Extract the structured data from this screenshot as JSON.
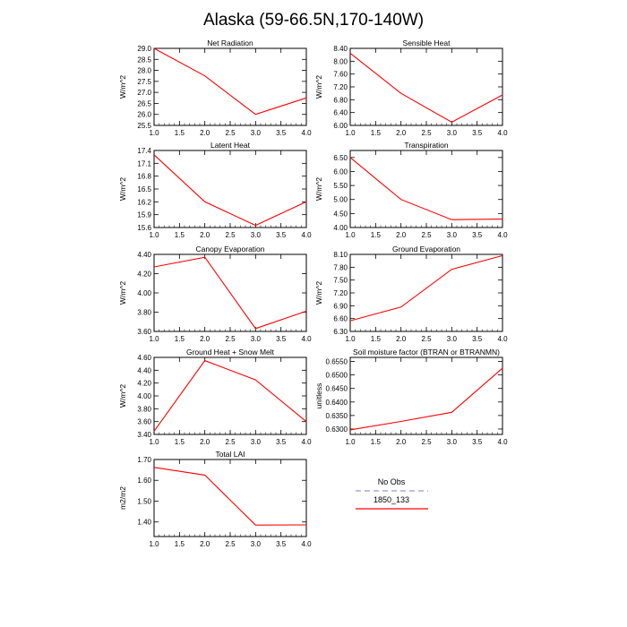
{
  "title": "Alaska (59-66.5N,170-140W)",
  "legend": {
    "title": "No Obs",
    "items": [
      {
        "label": "",
        "color": "#9999dd",
        "style": "dashed"
      },
      {
        "label": "1850_133",
        "color": "#ff0000",
        "style": "solid"
      }
    ]
  },
  "chart_data": [
    {
      "type": "line",
      "title": "Net Radiation",
      "ylabel": "W/m^2",
      "x": [
        1,
        2,
        3,
        4
      ],
      "values": [
        29.0,
        27.75,
        26.0,
        26.75
      ],
      "xlim": [
        1,
        4
      ],
      "ylim": [
        25.5,
        29.0
      ],
      "xticks": [
        "1.0",
        "1.5",
        "2.0",
        "2.5",
        "3.0",
        "3.5",
        "4.0"
      ],
      "yticks": [
        "25.5",
        "26.0",
        "26.5",
        "27.0",
        "27.5",
        "28.0",
        "28.5",
        "29.0"
      ]
    },
    {
      "type": "line",
      "title": "Sensible Heat",
      "ylabel": "W/m^2",
      "x": [
        1,
        2,
        3,
        4
      ],
      "values": [
        8.25,
        7.0,
        6.1,
        6.95
      ],
      "xlim": [
        1,
        4
      ],
      "ylim": [
        6.0,
        8.4
      ],
      "xticks": [
        "1.0",
        "1.5",
        "2.0",
        "2.5",
        "3.0",
        "3.5",
        "4.0"
      ],
      "yticks": [
        "6.00",
        "6.40",
        "6.80",
        "7.20",
        "7.60",
        "8.00",
        "8.40"
      ]
    },
    {
      "type": "line",
      "title": "Latent Heat",
      "ylabel": "W/m^2",
      "x": [
        1,
        2,
        3,
        4
      ],
      "values": [
        17.3,
        16.2,
        15.65,
        16.2
      ],
      "xlim": [
        1,
        4
      ],
      "ylim": [
        15.6,
        17.4
      ],
      "xticks": [
        "1.0",
        "1.5",
        "2.0",
        "2.5",
        "3.0",
        "3.5",
        "4.0"
      ],
      "yticks": [
        "15.6",
        "15.9",
        "16.2",
        "16.5",
        "16.8",
        "17.1",
        "17.4"
      ]
    },
    {
      "type": "line",
      "title": "Transpiration",
      "ylabel": "W/m^2",
      "x": [
        1,
        2,
        3,
        4
      ],
      "values": [
        6.5,
        5.0,
        4.28,
        4.3
      ],
      "xlim": [
        1,
        4
      ],
      "ylim": [
        4.0,
        6.75
      ],
      "xticks": [
        "1.0",
        "1.5",
        "2.0",
        "2.5",
        "3.0",
        "3.5",
        "4.0"
      ],
      "yticks": [
        "4.00",
        "4.50",
        "5.00",
        "5.50",
        "6.00",
        "6.50"
      ]
    },
    {
      "type": "line",
      "title": "Canopy Evaporation",
      "ylabel": "W/m^2",
      "x": [
        1,
        2,
        3,
        4
      ],
      "values": [
        4.27,
        4.37,
        3.63,
        3.81
      ],
      "xlim": [
        1,
        4
      ],
      "ylim": [
        3.6,
        4.4
      ],
      "xticks": [
        "1.0",
        "1.5",
        "2.0",
        "2.5",
        "3.0",
        "3.5",
        "4.0"
      ],
      "yticks": [
        "3.60",
        "3.80",
        "4.00",
        "4.20",
        "4.40"
      ]
    },
    {
      "type": "line",
      "title": "Ground Evaporation",
      "ylabel": "W/m^2",
      "x": [
        1,
        2,
        3,
        4
      ],
      "values": [
        6.55,
        6.87,
        7.75,
        8.07
      ],
      "xlim": [
        1,
        4
      ],
      "ylim": [
        6.3,
        8.1
      ],
      "xticks": [
        "1.0",
        "1.5",
        "2.0",
        "2.5",
        "3.0",
        "3.5",
        "4.0"
      ],
      "yticks": [
        "6.30",
        "6.60",
        "6.90",
        "7.20",
        "7.50",
        "7.80",
        "8.10"
      ]
    },
    {
      "type": "line",
      "title": "Ground Heat + Snow Melt",
      "ylabel": "W/m^2",
      "x": [
        1,
        2,
        3,
        4
      ],
      "values": [
        3.45,
        4.55,
        4.25,
        3.6
      ],
      "xlim": [
        1,
        4
      ],
      "ylim": [
        3.4,
        4.6
      ],
      "xticks": [
        "1.0",
        "1.5",
        "2.0",
        "2.5",
        "3.0",
        "3.5",
        "4.0"
      ],
      "yticks": [
        "3.40",
        "3.60",
        "3.80",
        "4.00",
        "4.20",
        "4.40",
        "4.60"
      ]
    },
    {
      "type": "line",
      "title": "Soil moisture factor (BTRAN or BTRANMN)",
      "ylabel": "unitless",
      "x": [
        1,
        2,
        3,
        4
      ],
      "values": [
        0.6297,
        0.6328,
        0.6362,
        0.6525
      ],
      "xlim": [
        1,
        4
      ],
      "ylim": [
        0.628,
        0.6565
      ],
      "xticks": [
        "1.0",
        "1.5",
        "2.0",
        "2.5",
        "3.0",
        "3.5",
        "4.0"
      ],
      "yticks": [
        "0.6300",
        "0.6350",
        "0.6400",
        "0.6450",
        "0.6500",
        "0.6550"
      ]
    },
    {
      "type": "line",
      "title": "Total LAI",
      "ylabel": "m2/m2",
      "x": [
        1,
        2,
        3,
        4
      ],
      "values": [
        1.662,
        1.625,
        1.385,
        1.386
      ],
      "xlim": [
        1,
        4
      ],
      "ylim": [
        1.33,
        1.7
      ],
      "xticks": [
        "1.0",
        "1.5",
        "2.0",
        "2.5",
        "3.0",
        "3.5",
        "4.0"
      ],
      "yticks": [
        "1.40",
        "1.50",
        "1.60",
        "1.70"
      ]
    }
  ]
}
